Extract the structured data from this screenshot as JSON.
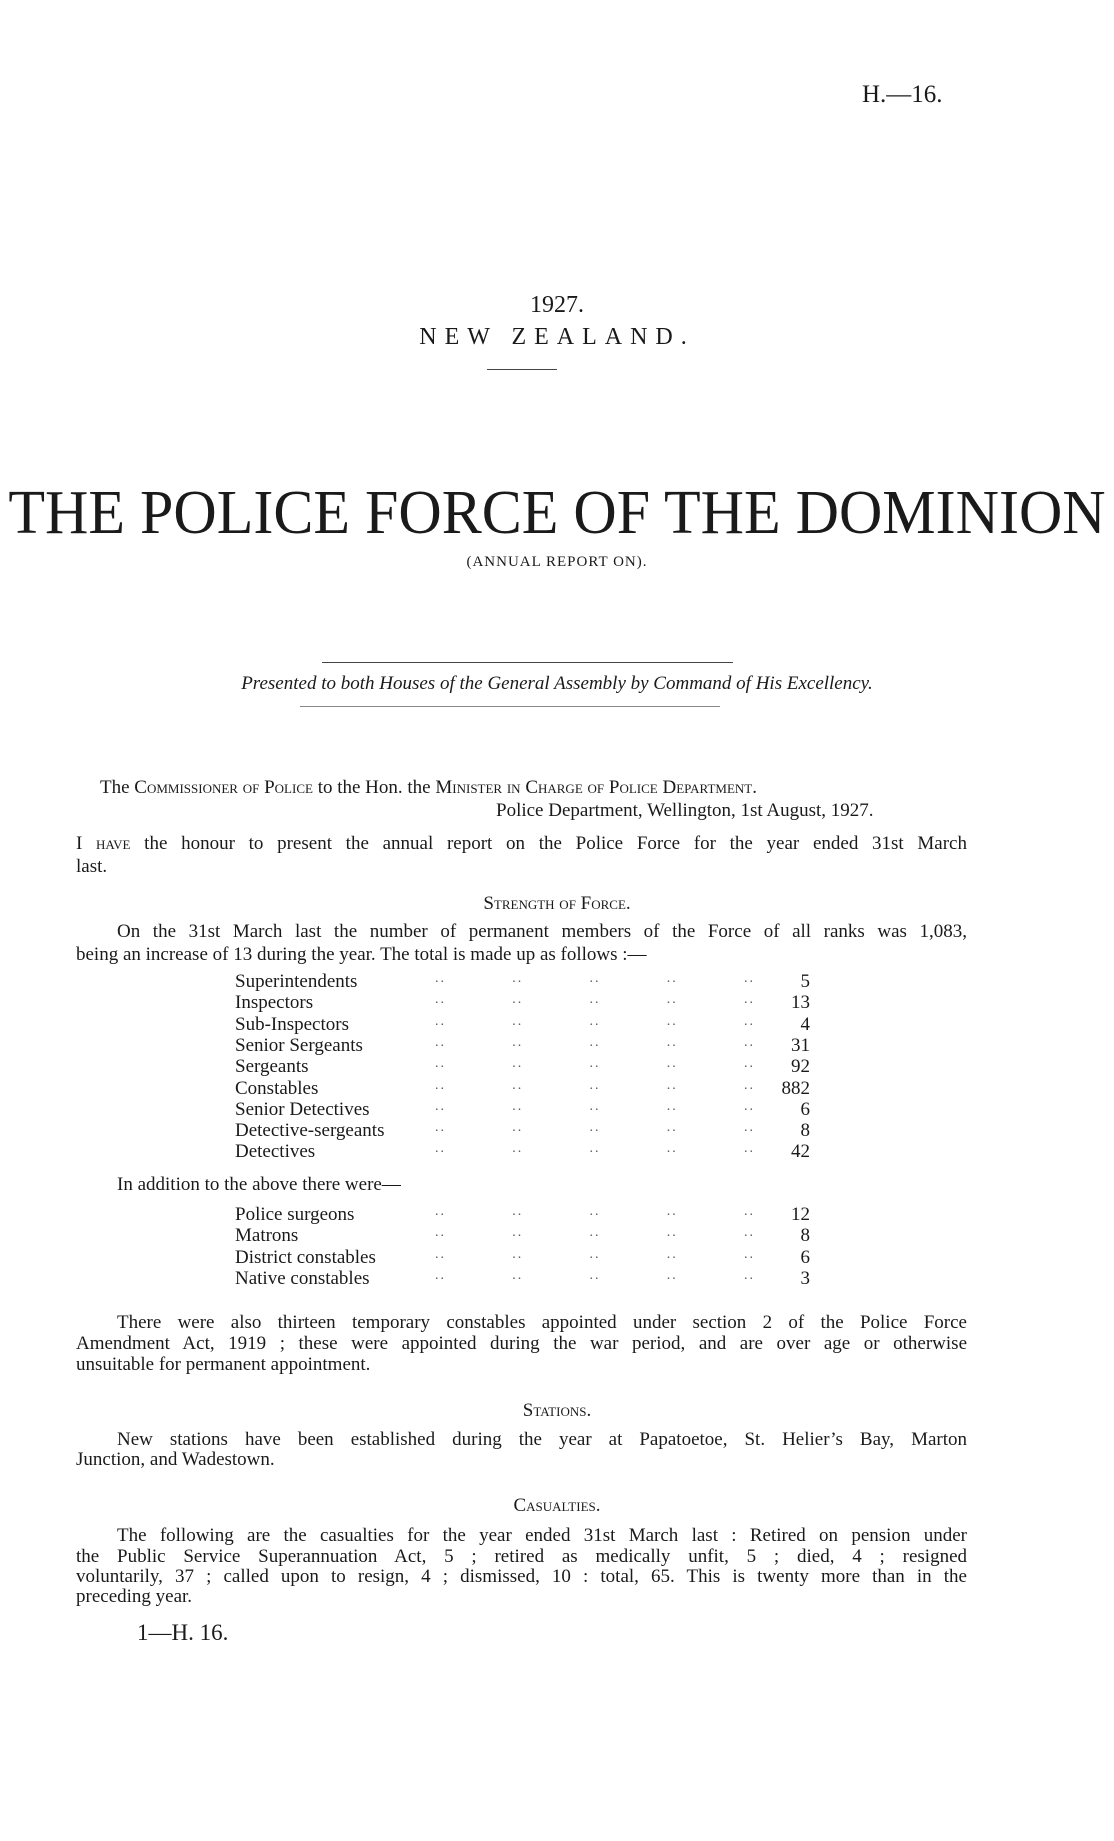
{
  "header": {
    "ref": "H.—16."
  },
  "title_block": {
    "year": "1927.",
    "country": "NEW ZEALAND.",
    "title": "THE POLICE FORCE OF THE DOMINION",
    "subtitle": "(ANNUAL REPORT ON).",
    "presented": "Presented to both Houses of the General Assembly by Command of His Excellency."
  },
  "letter": {
    "address_parts": [
      "The ",
      "Commissioner of Police",
      " to the Hon. the ",
      "Minister in Charge of Police Department."
    ],
    "dateline": "Police Department, Wellington, 1st August, 1927.",
    "intro_lead": "I have",
    "intro_line1": " the honour to present the annual report on the Police Force for the year ended 31st March",
    "intro_line2": "last."
  },
  "strength": {
    "heading": "Strength of Force.",
    "line1": "On the 31st March last the number of permanent members of the Force of all ranks was 1,083,",
    "line2": "being an increase of 13 during the year.  The total is made up as follows :—",
    "ranks": [
      {
        "name": "Superintendents",
        "value": "5"
      },
      {
        "name": "Inspectors",
        "value": "13"
      },
      {
        "name": "Sub-Inspectors",
        "value": "4"
      },
      {
        "name": "Senior Sergeants",
        "value": "31"
      },
      {
        "name": "Sergeants",
        "value": "92"
      },
      {
        "name": "Constables",
        "value": "882"
      },
      {
        "name": "Senior Detectives",
        "value": "6"
      },
      {
        "name": "Detective-sergeants",
        "value": "8"
      },
      {
        "name": "Detectives",
        "value": "42"
      }
    ],
    "addition_text": "In addition to the above there were—",
    "additional": [
      {
        "name": "Police surgeons",
        "value": "12"
      },
      {
        "name": "Matrons",
        "value": "8"
      },
      {
        "name": "District constables",
        "value": "6"
      },
      {
        "name": "Native constables",
        "value": "3"
      }
    ],
    "temp_lines": [
      "There were also thirteen temporary constables appointed under section 2 of the Police Force",
      "Amendment Act, 1919 ;  these were appointed during the war period, and are over age or otherwise",
      "unsuitable for permanent appointment."
    ]
  },
  "stations": {
    "heading": "Stations.",
    "lines": [
      "New stations have been established during the year at Papatoetoe, St. Helier’s Bay, Marton",
      "Junction, and Wadestown."
    ]
  },
  "casualties": {
    "heading": "Casualties.",
    "lines": [
      "The following are the casualties for the year ended 31st March last :  Retired on pension under",
      "the Public Service Superannuation Act, 5 ;  retired as medically unfit, 5 ;  died, 4 ;  resigned",
      "voluntarily, 37 ;  called upon to resign, 4 ;  dismissed, 10 :  total, 65.   This is twenty more than in the",
      "preceding year."
    ]
  },
  "footer": {
    "signature": "1—H. 16."
  }
}
